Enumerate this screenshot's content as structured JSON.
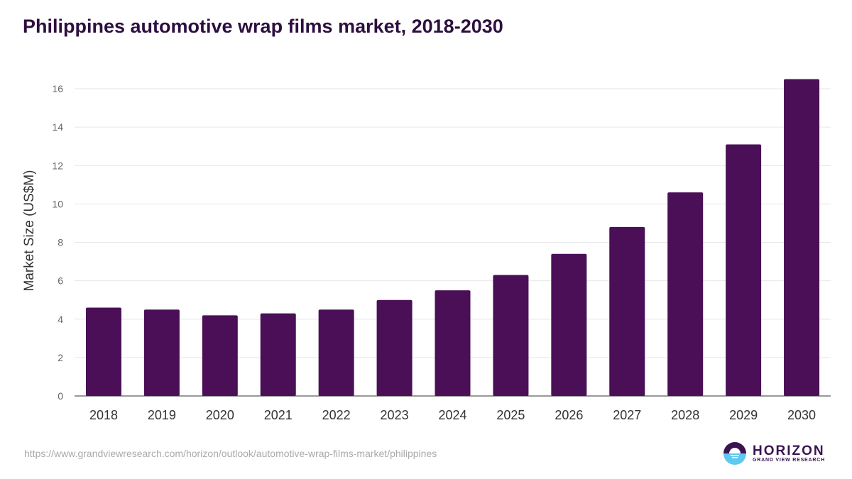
{
  "chart_data": {
    "type": "bar",
    "title": "Philippines automotive wrap films market, 2018-2030",
    "xlabel": "",
    "ylabel": "Market Size (US$M)",
    "ylim": [
      0,
      16
    ],
    "yticks": [
      "0",
      "2",
      "4",
      "6",
      "8",
      "10",
      "12",
      "14",
      "16"
    ],
    "categories": [
      "2018",
      "2019",
      "2020",
      "2021",
      "2022",
      "2023",
      "2024",
      "2025",
      "2026",
      "2027",
      "2028",
      "2029",
      "2030"
    ],
    "values": [
      4.6,
      4.5,
      4.2,
      4.3,
      4.5,
      5.0,
      5.5,
      6.3,
      7.4,
      8.8,
      10.6,
      13.1,
      16.5
    ],
    "grid": true,
    "bar_color": "#4a0f56"
  },
  "source": "https://www.grandviewresearch.com/horizon/outlook/automotive-wrap-films-market/philippines",
  "logo": {
    "name": "HORIZON",
    "sub": "GRAND VIEW RESEARCH"
  }
}
